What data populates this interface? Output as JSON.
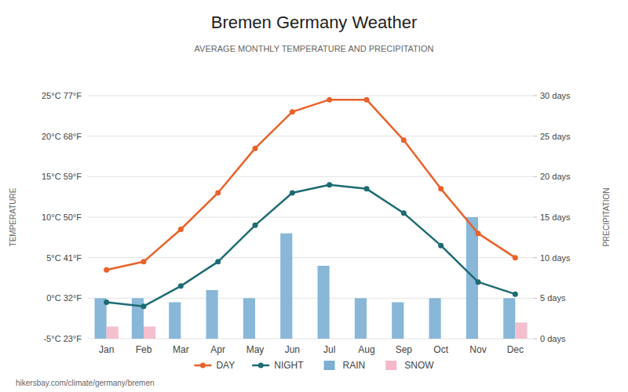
{
  "chart_data": {
    "type": "bar",
    "title": "Bremen Germany Weather",
    "subtitle": "AVERAGE MONTHLY TEMPERATURE AND PRECIPITATION",
    "categories": [
      "Jan",
      "Feb",
      "Mar",
      "Apr",
      "May",
      "Jun",
      "Jul",
      "Aug",
      "Sep",
      "Oct",
      "Nov",
      "Dec"
    ],
    "y_label": "TEMPERATURE",
    "y2_label": "PRECIPITATION",
    "ylim": [
      -5,
      25
    ],
    "yticks": [
      {
        "value": -5,
        "label": "-5°C 23°F"
      },
      {
        "value": 0,
        "label": "0°C 32°F"
      },
      {
        "value": 5,
        "label": "5°C 41°F"
      },
      {
        "value": 10,
        "label": "10°C 50°F"
      },
      {
        "value": 15,
        "label": "15°C 59°F"
      },
      {
        "value": 20,
        "label": "20°C 68°F"
      },
      {
        "value": 25,
        "label": "25°C 77°F"
      }
    ],
    "y2lim": [
      0,
      30
    ],
    "y2ticks": [
      {
        "value": 0,
        "label": "0 days"
      },
      {
        "value": 5,
        "label": "5 days"
      },
      {
        "value": 10,
        "label": "10 days"
      },
      {
        "value": 15,
        "label": "15 days"
      },
      {
        "value": 20,
        "label": "20 days"
      },
      {
        "value": 25,
        "label": "25 days"
      },
      {
        "value": 30,
        "label": "30 days"
      }
    ],
    "grid": true,
    "legend": "bottom",
    "series": [
      {
        "name": "DAY",
        "type": "line",
        "marker": "circle",
        "color": "#e8622a",
        "values": [
          3.5,
          4.5,
          8.5,
          13.0,
          18.5,
          23.0,
          24.5,
          24.5,
          19.5,
          13.5,
          8.0,
          5.0
        ]
      },
      {
        "name": "NIGHT",
        "type": "line",
        "marker": "circle",
        "color": "#1d6b72",
        "values": [
          -0.5,
          -1.0,
          1.5,
          4.5,
          9.0,
          13.0,
          14.0,
          13.5,
          10.5,
          6.5,
          2.0,
          0.5
        ]
      },
      {
        "name": "RAIN",
        "type": "bar",
        "axis": "y2",
        "color": "#7bafd4",
        "values": [
          5,
          5,
          4.5,
          6,
          5,
          13,
          9,
          5,
          4.5,
          5,
          15,
          5
        ]
      },
      {
        "name": "SNOW",
        "type": "bar",
        "axis": "y2",
        "color": "#f4b8c8",
        "values": [
          1.5,
          1.5,
          0,
          0,
          0,
          0,
          0,
          0,
          0,
          0,
          0,
          2
        ]
      }
    ],
    "annotations": [
      {
        "text": "hikersbay.com/climate/germany/bremen"
      }
    ]
  }
}
